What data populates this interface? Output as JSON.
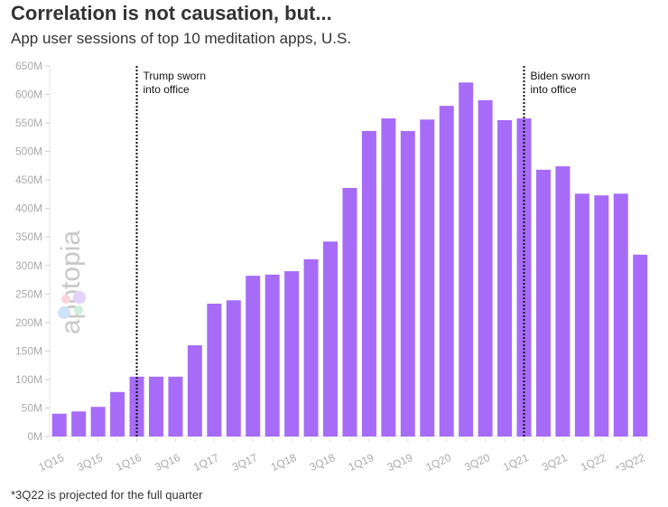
{
  "chart_data": {
    "type": "bar",
    "title": "Correlation is not causation, but...",
    "subtitle": "App user sessions of top 10 meditation apps, U.S.",
    "note": "*3Q22 is projected for the full quarter",
    "xlabel": "",
    "ylabel": "",
    "ylim": [
      0,
      650
    ],
    "yticks": [
      "0M",
      "50M",
      "100M",
      "150M",
      "200M",
      "250M",
      "300M",
      "350M",
      "400M",
      "450M",
      "500M",
      "550M",
      "600M",
      "650M"
    ],
    "categories": [
      "1Q15",
      "2Q15",
      "3Q15",
      "4Q15",
      "1Q16",
      "2Q16",
      "3Q16",
      "4Q16",
      "1Q17",
      "2Q17",
      "3Q17",
      "4Q17",
      "1Q18",
      "2Q18",
      "3Q18",
      "4Q18",
      "1Q19",
      "2Q19",
      "3Q19",
      "4Q19",
      "1Q20",
      "2Q20",
      "3Q20",
      "4Q20",
      "1Q21",
      "2Q21",
      "3Q21",
      "4Q21",
      "1Q22",
      "2Q22",
      "*3Q22"
    ],
    "values": [
      40,
      44,
      52,
      78,
      105,
      105,
      105,
      160,
      233,
      239,
      282,
      284,
      290,
      311,
      342,
      436,
      536,
      558,
      536,
      556,
      580,
      621,
      590,
      555,
      558,
      468,
      474,
      426,
      423,
      426,
      319
    ],
    "unit": "M",
    "bar_color": "#a66cf8",
    "grid": false,
    "annotations": [
      {
        "category": "1Q16",
        "line1": "Trump sworn",
        "line2": "into office"
      },
      {
        "category": "1Q21",
        "line1": "Biden sworn",
        "line2": "into office"
      }
    ],
    "watermark": "apptopia"
  }
}
